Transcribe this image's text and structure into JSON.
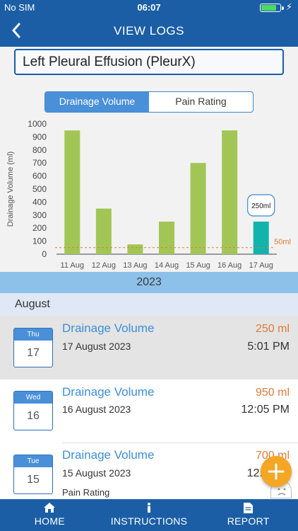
{
  "status_bar": {
    "carrier": "No SIM",
    "time": "06:07",
    "battery_level": 0.8,
    "battery_color": "#4cd964"
  },
  "nav": {
    "title": "VIEW LOGS",
    "back_icon": "chevron-left-icon"
  },
  "log_name": "Left Pleural Effusion (PleurX)",
  "segments": {
    "active": "Drainage Volume",
    "inactive": "Pain Rating"
  },
  "chart_data": {
    "type": "bar",
    "ylabel": "Drainage Volume (ml)",
    "xlabel": "",
    "ylim": [
      0,
      1000
    ],
    "yticks": [
      0,
      100,
      200,
      300,
      400,
      500,
      600,
      700,
      800,
      900,
      1000
    ],
    "categories": [
      "11 Aug",
      "12 Aug",
      "13 Aug",
      "14 Aug",
      "15 Aug",
      "16 Aug",
      "17 Aug"
    ],
    "values": [
      950,
      350,
      75,
      250,
      700,
      950,
      250
    ],
    "selected_index": 6,
    "selected_label": "250ml",
    "threshold": {
      "value": 50,
      "label": "50ml",
      "color": "#e07a3a"
    },
    "bar_color": "#a2c656",
    "selected_color": "#12b2ad",
    "grid": false
  },
  "list": {
    "year": "2023",
    "month": "August",
    "entries": [
      {
        "dow": "Thu",
        "day": "17",
        "name": "Drainage Volume",
        "date": "17 August 2023",
        "value": "250 ml",
        "time": "5:01 PM",
        "selected": true
      },
      {
        "dow": "Wed",
        "day": "16",
        "name": "Drainage Volume",
        "date": "16 August 2023",
        "value": "950 ml",
        "time": "12:05 PM",
        "selected": false
      },
      {
        "dow": "Tue",
        "day": "15",
        "name": "Drainage Volume",
        "date": "15 August 2023",
        "value": "700 ml",
        "time": "12:",
        "sub": "Pain Rating",
        "selected": false
      }
    ]
  },
  "fab_icon": "plus-icon",
  "tabs": [
    {
      "label": "HOME",
      "icon": "home-icon"
    },
    {
      "label": "INSTRUCTIONS",
      "icon": "info-icon"
    },
    {
      "label": "REPORT",
      "icon": "document-icon"
    }
  ],
  "colors": {
    "brand": "#1b5ea5",
    "accent": "#4a90d9",
    "value": "#e07a3a",
    "fab": "#f5a623"
  }
}
